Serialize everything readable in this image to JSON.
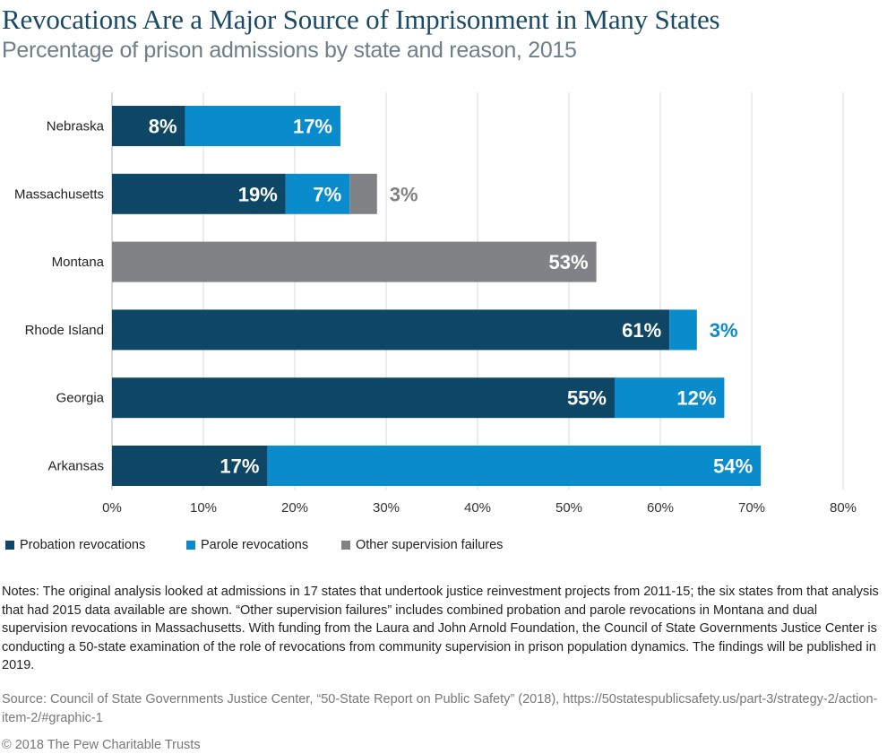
{
  "header": {
    "title": "Revocations Are a Major Source of Imprisonment in Many States",
    "subtitle": "Percentage of prison admissions by state and reason, 2015"
  },
  "colors": {
    "probation": "#0e4766",
    "parole": "#0a8ccc",
    "other": "#808285",
    "grid": "#d9d9d9"
  },
  "chart_data": {
    "type": "bar",
    "orientation": "horizontal",
    "stacked": true,
    "categories": [
      "Nebraska",
      "Massachusetts",
      "Montana",
      "Rhode Island",
      "Georgia",
      "Arkansas"
    ],
    "series": [
      {
        "name": "Probation revocations",
        "values": [
          8,
          19,
          0,
          61,
          55,
          17
        ]
      },
      {
        "name": "Parole revocations",
        "values": [
          17,
          7,
          0,
          3,
          12,
          54
        ]
      },
      {
        "name": "Other supervision failures",
        "values": [
          0,
          3,
          53,
          0,
          0,
          0
        ]
      }
    ],
    "unit": "%",
    "xlim": [
      0,
      80
    ],
    "xticks": [
      "0%",
      "10%",
      "20%",
      "30%",
      "40%",
      "50%",
      "60%",
      "70%",
      "80%"
    ],
    "grid": "vertical",
    "legend_position": "bottom-left"
  },
  "legend": {
    "probation": "Probation revocations",
    "parole": "Parole revocations",
    "other": "Other supervision failures"
  },
  "notes": "Notes: The original analysis looked at admissions in 17 states that undertook justice reinvestment projects from 2011-15; the six states from that analysis that had 2015 data available are shown. “Other supervision failures” includes combined probation and parole revocations in Montana and dual supervision revocations in Massachusetts. With funding from the Laura and John Arnold Foundation, the Council of State Governments Justice Center is conducting a 50-state examination of the role of revocations from community supervision in prison population dynamics. The findings will be published in 2019.",
  "source": "Source: Council of State Governments Justice Center, “50-State Report on Public Safety” (2018), https://50statespublicsafety.us/part-3/strategy-2/action-item-2/#graphic-1",
  "copyright": "© 2018 The Pew Charitable Trusts"
}
